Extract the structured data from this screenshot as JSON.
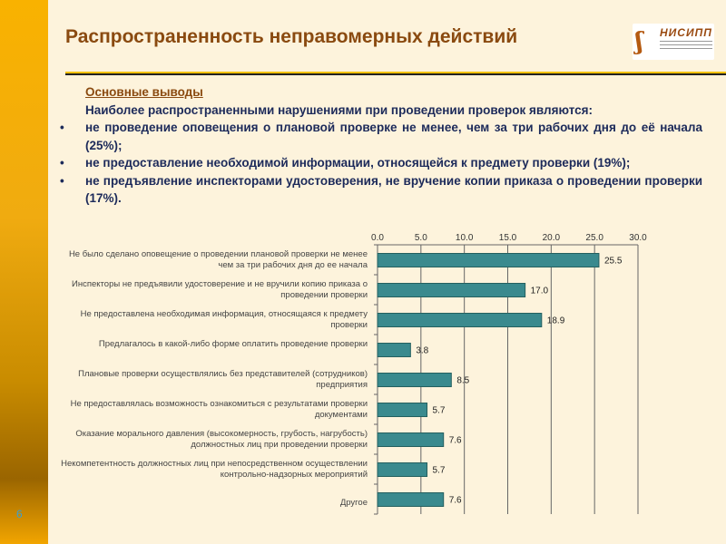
{
  "slide": {
    "title": "Распространенность неправомерных действий",
    "page_number": "6",
    "logo_text": "НИСИПП"
  },
  "summary": {
    "heading": "Основные выводы",
    "intro": "Наиболее распространенными нарушениями при проведении проверок являются:",
    "bullets": [
      "не проведение оповещения о плановой проверке не менее, чем за три рабочих дня до её начала (25%);",
      "не предоставление необходимой информации, относящейся к предмету проверки (19%);",
      "не предъявление инспекторами удостоверения, не вручение копии приказа о проведении проверки (17%)."
    ]
  },
  "colors": {
    "bar": "#3a8a8e",
    "title": "#8a4a10",
    "text": "#1c2a5a"
  },
  "chart_data": {
    "type": "bar",
    "orientation": "horizontal",
    "categories": [
      "Не было сделано оповещение о проведении плановой проверки не менее чем за три рабочих дня до ее начала",
      "Инспекторы не предъявили удостоверение и не вручили копию приказа о проведении проверки",
      "Не предоставлена необходимая информация, относящаяся к предмету проверки",
      "Предлагалось в какой-либо форме оплатить проведение проверки",
      "Плановые проверки осуществлялись без представителей (сотрудников) предприятия",
      "Не предоставлялась возможность ознакомиться с результатами проверки документами",
      "Оказание морального давления (высокомерность, грубость, нагрубость) должностных лиц при проведении проверки",
      "Некомпетентность должностных лиц при непосредственном осуществлении контрольно-надзорных мероприятий",
      "Другое"
    ],
    "values": [
      25.5,
      17.0,
      18.9,
      3.8,
      8.5,
      5.7,
      7.6,
      5.7,
      7.6
    ],
    "value_labels": [
      "25.5",
      "17.0",
      "18.9",
      "3.8",
      "8.5",
      "5.7",
      "7.6",
      "5.7",
      "7.6"
    ],
    "xlim": [
      0,
      30
    ],
    "xticks": [
      "0.0",
      "5.0",
      "10.0",
      "15.0",
      "20.0",
      "25.0",
      "30.0"
    ],
    "grid": true,
    "axis_position": "top"
  }
}
